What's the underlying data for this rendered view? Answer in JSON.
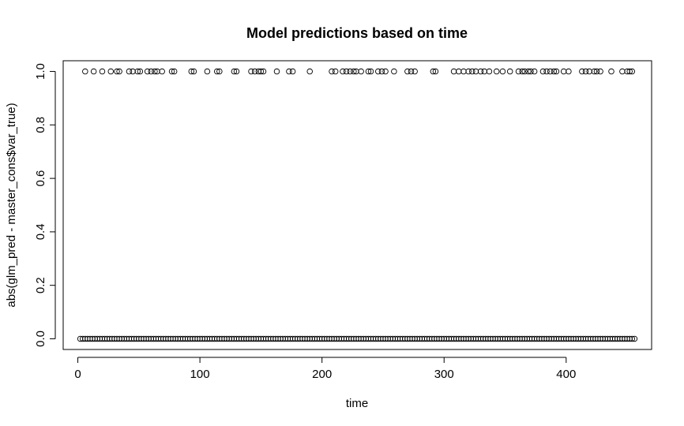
{
  "chart_data": {
    "type": "scatter",
    "title": "Model predictions based on time",
    "xlabel": "time",
    "ylabel": "abs(glm_pred - master_cons$var_true)",
    "xlim": [
      -12,
      470
    ],
    "ylim": [
      -0.04,
      1.04
    ],
    "x_ticks": [
      0,
      100,
      200,
      300,
      400
    ],
    "y_ticks": [
      0.0,
      0.2,
      0.4,
      0.6,
      0.8,
      1.0
    ],
    "x_tick_labels": [
      "0",
      "100",
      "200",
      "300",
      "400"
    ],
    "y_tick_labels": [
      "0.0",
      "0.2",
      "0.4",
      "0.6",
      "0.8",
      "1.0"
    ],
    "grid": false,
    "legend": "none",
    "marker": "open-circle",
    "series": [
      {
        "x": [
          6,
          13,
          20,
          27,
          32,
          34,
          42,
          45,
          49,
          51,
          57,
          60,
          63,
          65,
          69,
          77,
          79,
          93,
          95,
          106,
          114,
          116,
          128,
          130,
          142,
          145,
          148,
          150,
          152,
          163,
          173,
          176,
          190,
          208,
          211,
          217,
          220,
          223,
          226,
          228,
          232,
          238,
          240,
          246,
          249,
          252,
          259,
          270,
          273,
          276,
          291,
          293,
          308,
          312,
          316,
          320,
          323,
          326,
          330,
          333,
          337,
          343,
          348,
          354,
          361,
          364,
          366,
          369,
          371,
          374,
          381,
          384,
          387,
          390,
          392,
          398,
          402,
          413,
          416,
          419,
          423,
          425,
          428,
          437,
          446,
          450,
          452,
          454
        ],
        "y": [
          1,
          1,
          1,
          1,
          1,
          1,
          1,
          1,
          1,
          1,
          1,
          1,
          1,
          1,
          1,
          1,
          1,
          1,
          1,
          1,
          1,
          1,
          1,
          1,
          1,
          1,
          1,
          1,
          1,
          1,
          1,
          1,
          1,
          1,
          1,
          1,
          1,
          1,
          1,
          1,
          1,
          1,
          1,
          1,
          1,
          1,
          1,
          1,
          1,
          1,
          1,
          1,
          1,
          1,
          1,
          1,
          1,
          1,
          1,
          1,
          1,
          1,
          1,
          1,
          1,
          1,
          1,
          1,
          1,
          1,
          1,
          1,
          1,
          1,
          1,
          1,
          1,
          1,
          1,
          1,
          1,
          1,
          1,
          1,
          1,
          1,
          1,
          1
        ]
      },
      {
        "x_range_step": [
          2,
          457,
          2
        ],
        "y_constant": 0
      }
    ]
  }
}
